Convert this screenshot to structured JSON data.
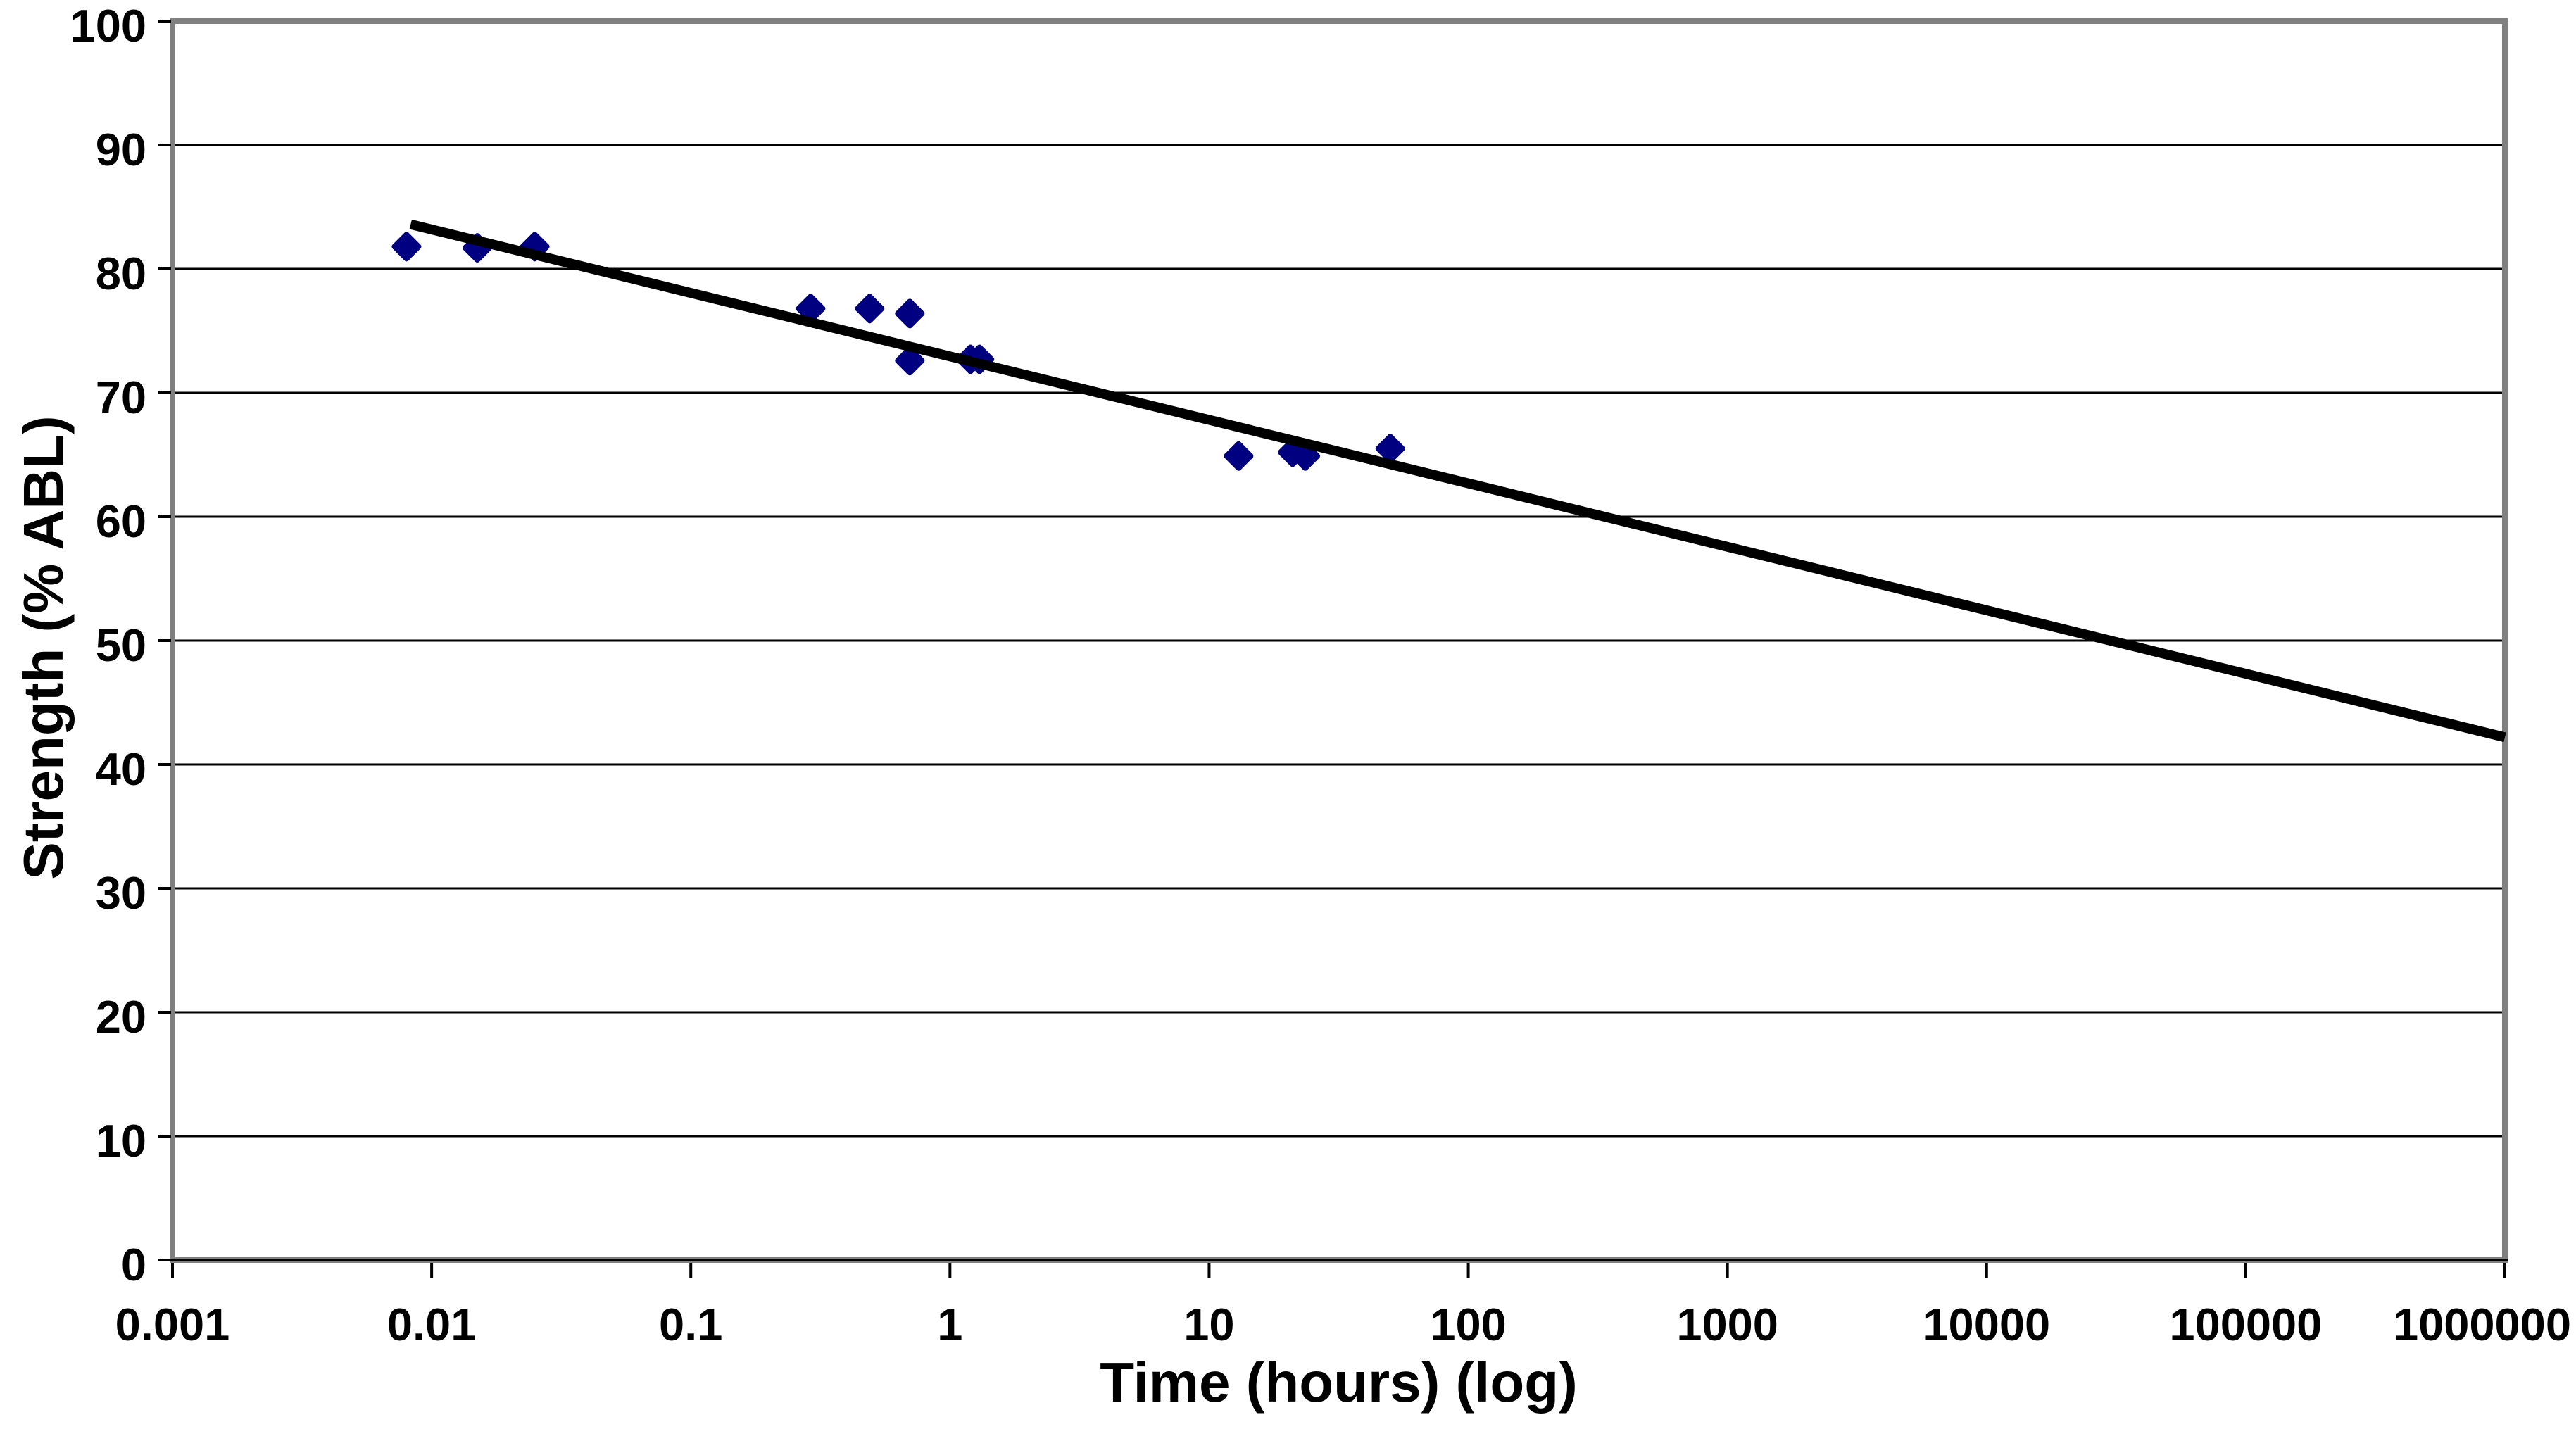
{
  "chart_data": {
    "type": "scatter",
    "title": "",
    "xlabel": "Time (hours) (log)",
    "ylabel": "Strength (% ABL)",
    "x_scale": "log",
    "y_scale": "linear",
    "xlim": [
      0.001,
      1000000
    ],
    "ylim": [
      0,
      100
    ],
    "x_ticks": [
      0.001,
      0.01,
      0.1,
      1,
      10,
      100,
      1000,
      10000,
      100000,
      1000000
    ],
    "x_tick_labels": [
      "0.001",
      "0.01",
      "0.1",
      "1",
      "10",
      "100",
      "1000",
      "10000",
      "100000",
      "1000000"
    ],
    "y_ticks": [
      0,
      10,
      20,
      30,
      40,
      50,
      60,
      70,
      80,
      90,
      100
    ],
    "y_tick_labels": [
      "0",
      "10",
      "20",
      "30",
      "40",
      "50",
      "60",
      "70",
      "80",
      "90",
      "100"
    ],
    "grid": "horizontal",
    "legend": "none",
    "colors": {
      "marker": "#000080",
      "trend_line": "#000000",
      "grid_line": "#000000",
      "axis_line": "#000000",
      "plot_border": "#808080",
      "text": "#000000",
      "background": "#ffffff"
    },
    "series": [
      {
        "name": "strength-measurements",
        "type": "scatter",
        "marker": "diamond",
        "color": "#000080",
        "points": [
          [
            0.008,
            81.8
          ],
          [
            0.015,
            81.7
          ],
          [
            0.025,
            81.8
          ],
          [
            0.29,
            76.8
          ],
          [
            0.49,
            76.8
          ],
          [
            0.7,
            76.4
          ],
          [
            0.7,
            72.6
          ],
          [
            1.2,
            72.7
          ],
          [
            1.3,
            72.7
          ],
          [
            13,
            64.9
          ],
          [
            21,
            65.2
          ],
          [
            23.5,
            64.9
          ],
          [
            50,
            65.5
          ]
        ]
      },
      {
        "name": "trend-line",
        "type": "line",
        "color": "#000000",
        "points": [
          [
            0.0083,
            83.6
          ],
          [
            1000000,
            42.2
          ]
        ]
      }
    ]
  }
}
